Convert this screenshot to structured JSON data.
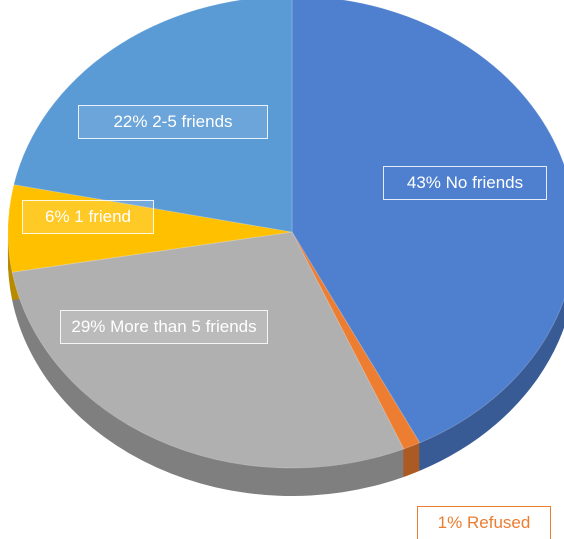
{
  "chart_data": {
    "type": "pie",
    "categories": [
      "No friends",
      "Refused",
      "More than 5 friends",
      "1 friend",
      "2-5 friends"
    ],
    "values": [
      43,
      1,
      29,
      6,
      22
    ],
    "value_labels": [
      "43%",
      "1%",
      "29%",
      "6%",
      "22%"
    ],
    "colors": [
      "#4f7fcf",
      "#ed7d31",
      "#b0b0b0",
      "#ffc000",
      "#5b9bd5"
    ]
  }
}
